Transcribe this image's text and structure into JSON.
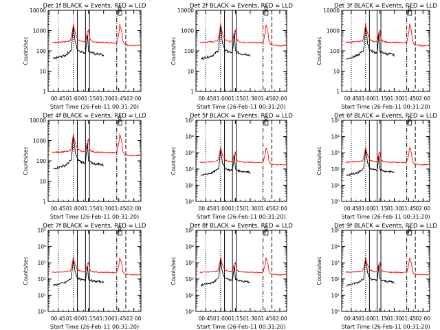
{
  "figure": {
    "colors": {
      "events": "#000000",
      "lld": "#ff0000",
      "axes": "#000000",
      "background": "#ffffff"
    }
  },
  "chart_data": [
    {
      "type": "line",
      "title": "Det 1f BLACK = Events, RED = LLD",
      "ylabel": "Counts/sec",
      "xlabel": "Start Time (26-Feb-11 00:31:20)",
      "xticks": [
        "00:45",
        "01:00",
        "01:15",
        "01:30",
        "01:45",
        "02:00"
      ],
      "ylim": [
        1,
        10000
      ],
      "ytick_style": "plain",
      "ytick_labels": [
        "1",
        "10",
        "100",
        "1000",
        "10000"
      ],
      "yscale": "log",
      "marker_label": "Q",
      "series": [
        {
          "key": "events"
        },
        {
          "key": "lld"
        }
      ]
    },
    {
      "type": "line",
      "title": "Det 2f BLACK = Events, RED = LLD",
      "ylabel": "Counts/sec",
      "xlabel": "Start Time (26-Feb-11 00:31:20)",
      "xticks": [
        "00:45",
        "01:00",
        "01:15",
        "01:30",
        "01:45",
        "02:00"
      ],
      "ylim": [
        1,
        10000
      ],
      "ytick_style": "plain",
      "ytick_labels": [
        "1",
        "10",
        "100",
        "1000",
        "10000"
      ],
      "yscale": "log",
      "marker_label": "Q",
      "series": [
        {
          "key": "events"
        },
        {
          "key": "lld"
        }
      ]
    },
    {
      "type": "line",
      "title": "Det 3f BLACK = Events, RED = LLD",
      "ylabel": "Counts/sec",
      "xlabel": "Start Time (26-Feb-11 00:31:20)",
      "xticks": [
        "00:45",
        "01:00",
        "01:15",
        "01:30",
        "01:45",
        "02:00"
      ],
      "ylim": [
        1,
        10000
      ],
      "ytick_style": "plain",
      "ytick_labels": [
        "1",
        "10",
        "100",
        "1000",
        "10000"
      ],
      "yscale": "log",
      "marker_label": "Q",
      "series": [
        {
          "key": "events"
        },
        {
          "key": "lld"
        }
      ]
    },
    {
      "type": "line",
      "title": "Det 4f BLACK = Events, RED = LLD",
      "ylabel": "Counts/sec",
      "xlabel": "Start Time (26-Feb-11 00:31:20)",
      "xticks": [
        "00:45",
        "01:00",
        "01:15",
        "01:30",
        "01:45",
        "02:00"
      ],
      "ylim": [
        1,
        10000
      ],
      "ytick_style": "plain",
      "ytick_labels": [
        "1",
        "10",
        "100",
        "1000",
        "10000"
      ],
      "yscale": "log",
      "marker_label": "Q",
      "series": [
        {
          "key": "events"
        },
        {
          "key": "lld"
        }
      ]
    },
    {
      "type": "line",
      "title": "Det 5f BLACK = Events, RED = LLD",
      "ylabel": "Counts/sec",
      "xlabel": "Start Time (26-Feb-11 00:31:20)",
      "xticks": [
        "00:45",
        "01:00",
        "01:15",
        "01:30",
        "01:45",
        "02:00"
      ],
      "ylim": [
        1,
        100000
      ],
      "ytick_style": "exp",
      "ytick_labels": [
        "10⁰",
        "10¹",
        "10²",
        "10³",
        "10⁴",
        "10⁵"
      ],
      "yscale": "log",
      "marker_label": "Q",
      "series": [
        {
          "key": "events"
        },
        {
          "key": "lld"
        }
      ]
    },
    {
      "type": "line",
      "title": "Det 6f BLACK = Events, RED = LLD",
      "ylabel": "Counts/sec",
      "xlabel": "Start Time (26-Feb-11 00:31:20)",
      "xticks": [
        "00:45",
        "01:00",
        "01:15",
        "01:30",
        "01:45",
        "02:00"
      ],
      "ylim": [
        1,
        100000
      ],
      "ytick_style": "exp",
      "ytick_labels": [
        "10⁰",
        "10¹",
        "10²",
        "10³",
        "10⁴",
        "10⁵"
      ],
      "yscale": "log",
      "marker_label": "Q",
      "series": [
        {
          "key": "events"
        },
        {
          "key": "lld"
        }
      ]
    },
    {
      "type": "line",
      "title": "Det 7f BLACK = Events, RED = LLD",
      "ylabel": "Counts/sec",
      "xlabel": "Start Time (26-Feb-11 00:31:20)",
      "xticks": [
        "00:45",
        "01:00",
        "01:15",
        "01:30",
        "01:45",
        "02:00"
      ],
      "ylim": [
        1,
        100000
      ],
      "ytick_style": "exp",
      "ytick_labels": [
        "10⁰",
        "10¹",
        "10²",
        "10³",
        "10⁴",
        "10⁵"
      ],
      "yscale": "log",
      "marker_label": "Q",
      "series": [
        {
          "key": "events"
        },
        {
          "key": "lld"
        }
      ]
    },
    {
      "type": "line",
      "title": "Det 8f BLACK = Events, RED = LLD",
      "ylabel": "Counts/sec",
      "xlabel": "Start Time (26-Feb-11 00:31:20)",
      "xticks": [
        "00:45",
        "01:00",
        "01:15",
        "01:30",
        "01:45",
        "02:00"
      ],
      "ylim": [
        1,
        100000
      ],
      "ytick_style": "exp",
      "ytick_labels": [
        "10⁰",
        "10¹",
        "10²",
        "10³",
        "10⁴",
        "10⁵"
      ],
      "yscale": "log",
      "marker_label": "Q",
      "series": [
        {
          "key": "events"
        },
        {
          "key": "lld"
        }
      ]
    },
    {
      "type": "line",
      "title": "Det 9f BLACK = Events, RED = LLD",
      "ylabel": "Counts/sec",
      "xlabel": "Start Time (26-Feb-11 00:31:20)",
      "xticks": [
        "00:45",
        "01:00",
        "01:15",
        "01:30",
        "01:45",
        "02:00"
      ],
      "ylim": [
        1,
        100000
      ],
      "ytick_style": "exp",
      "ytick_labels": [
        "10⁰",
        "10¹",
        "10²",
        "10³",
        "10⁴",
        "10⁵"
      ],
      "yscale": "log",
      "marker_label": "Q",
      "series": [
        {
          "key": "events"
        },
        {
          "key": "lld"
        }
      ]
    }
  ],
  "events_shape": {
    "x": [
      "00:40",
      "00:52",
      "00:55",
      "00:58",
      "01:00",
      "01:02",
      "01:04",
      "01:06",
      "01:08",
      "01:10",
      "01:12",
      "01:14",
      "01:15",
      "01:16",
      "01:18",
      "01:20",
      "01:22",
      "01:24",
      "01:26",
      "01:28",
      "01:30"
    ],
    "values": [
      40,
      60,
      80,
      110,
      1500,
      250,
      120,
      100,
      90,
      85,
      80,
      700,
      100,
      90,
      80,
      75,
      70,
      70,
      70,
      65,
      60
    ]
  },
  "lld_shape": {
    "x": [
      "00:39",
      "00:45",
      "00:50",
      "00:54",
      "00:57",
      "00:59",
      "01:00",
      "01:01",
      "01:03",
      "01:05",
      "01:08",
      "01:10",
      "01:12",
      "01:14",
      "01:15",
      "01:16",
      "01:18",
      "01:22",
      "01:26",
      "01:30",
      "01:35",
      "01:40",
      "01:43",
      "01:45",
      "01:46",
      "01:48",
      "01:49",
      "01:51",
      "01:55",
      "02:00",
      "02:05",
      "02:06"
    ],
    "values": [
      260,
      270,
      280,
      290,
      310,
      900,
      2200,
      1100,
      500,
      350,
      300,
      280,
      300,
      900,
      1100,
      400,
      300,
      270,
      260,
      260,
      255,
      250,
      260,
      700,
      2100,
      900,
      300,
      200,
      190,
      180,
      185,
      180
    ]
  },
  "annotations": {
    "dotted_x": [
      "00:45",
      "01:00"
    ],
    "solid_x": [
      "01:04",
      "01:12",
      "01:16"
    ],
    "dashdot_x": "01:43",
    "dashed_x": "01:52"
  }
}
